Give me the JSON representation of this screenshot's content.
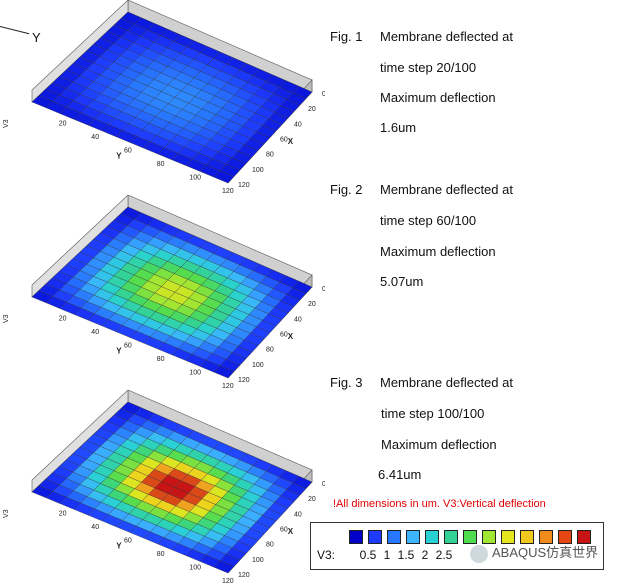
{
  "axis_hint": "Y",
  "figures": [
    {
      "fig": "Fig. 1",
      "line1": "Membrane deflected at",
      "line2": "time step 20/100",
      "line3": "Maximum deflection",
      "line4": "1.6um",
      "max": 1.6
    },
    {
      "fig": "Fig. 2",
      "line1": "Membrane deflected at",
      "line2": "time step 60/100",
      "line3": "Maximum deflection",
      "line4": "5.07um",
      "max": 5.07
    },
    {
      "fig": "Fig. 3",
      "line1": "Membrane deflected at",
      "line2": "time step 100/100",
      "line3": "Maximum deflection",
      "line4": "6.41um",
      "max": 6.41
    }
  ],
  "axes": {
    "x_label": "X",
    "y_label": "Y",
    "z_label": "V3",
    "x_ticks": [
      "0",
      "20",
      "40",
      "60",
      "80",
      "100",
      "120"
    ],
    "y_ticks": [
      "20",
      "40",
      "60",
      "80",
      "100",
      "120"
    ]
  },
  "note": "!All dimensions in um. V3:Vertical deflection",
  "legend": {
    "label": "V3:",
    "ticks": [
      "0.5",
      "1",
      "1.5",
      "2",
      "2.5"
    ],
    "colors": [
      "#0000c8",
      "#1e3cff",
      "#2878ff",
      "#3cb4ff",
      "#28d2d2",
      "#32d296",
      "#50dc50",
      "#a0e632",
      "#e6e61e",
      "#f0c81e",
      "#f08c1e",
      "#e64614",
      "#c81414"
    ]
  },
  "watermark": "ABAQUS仿真世界"
}
